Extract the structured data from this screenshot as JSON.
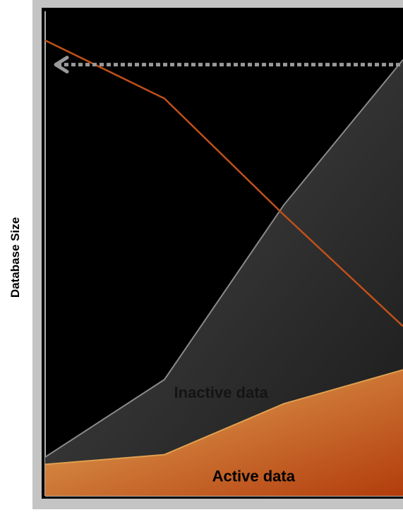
{
  "chart_data": {
    "type": "area",
    "title": "",
    "ylabel": "Database Size",
    "xlabel": "",
    "grid": false,
    "legend": "none",
    "x": [
      0,
      1,
      2,
      3
    ],
    "ylim": [
      0,
      100
    ],
    "series": [
      {
        "name": "Active data",
        "kind": "area",
        "values": [
          6.5,
          8.5,
          19,
          26
        ],
        "color": "#c97a32"
      },
      {
        "name": "Inactive data",
        "kind": "area-stacked",
        "values": [
          8,
          24,
          60,
          90
        ],
        "color": "#2e2e2e"
      },
      {
        "kind": "line",
        "values": [
          94,
          82,
          58,
          35
        ],
        "color": "#c0501a"
      }
    ],
    "annotations": [
      {
        "type": "dashed-arrow",
        "direction": "left",
        "level": 89
      }
    ]
  },
  "colors": {
    "plot_bg": "#000000",
    "frame": "#c4c4c4",
    "active_top": "#e0a050",
    "active_bottom": "#b84010",
    "inactive_edge": "#8a8a8a",
    "line": "#c0501a",
    "arrow": "#9a9a9a"
  }
}
